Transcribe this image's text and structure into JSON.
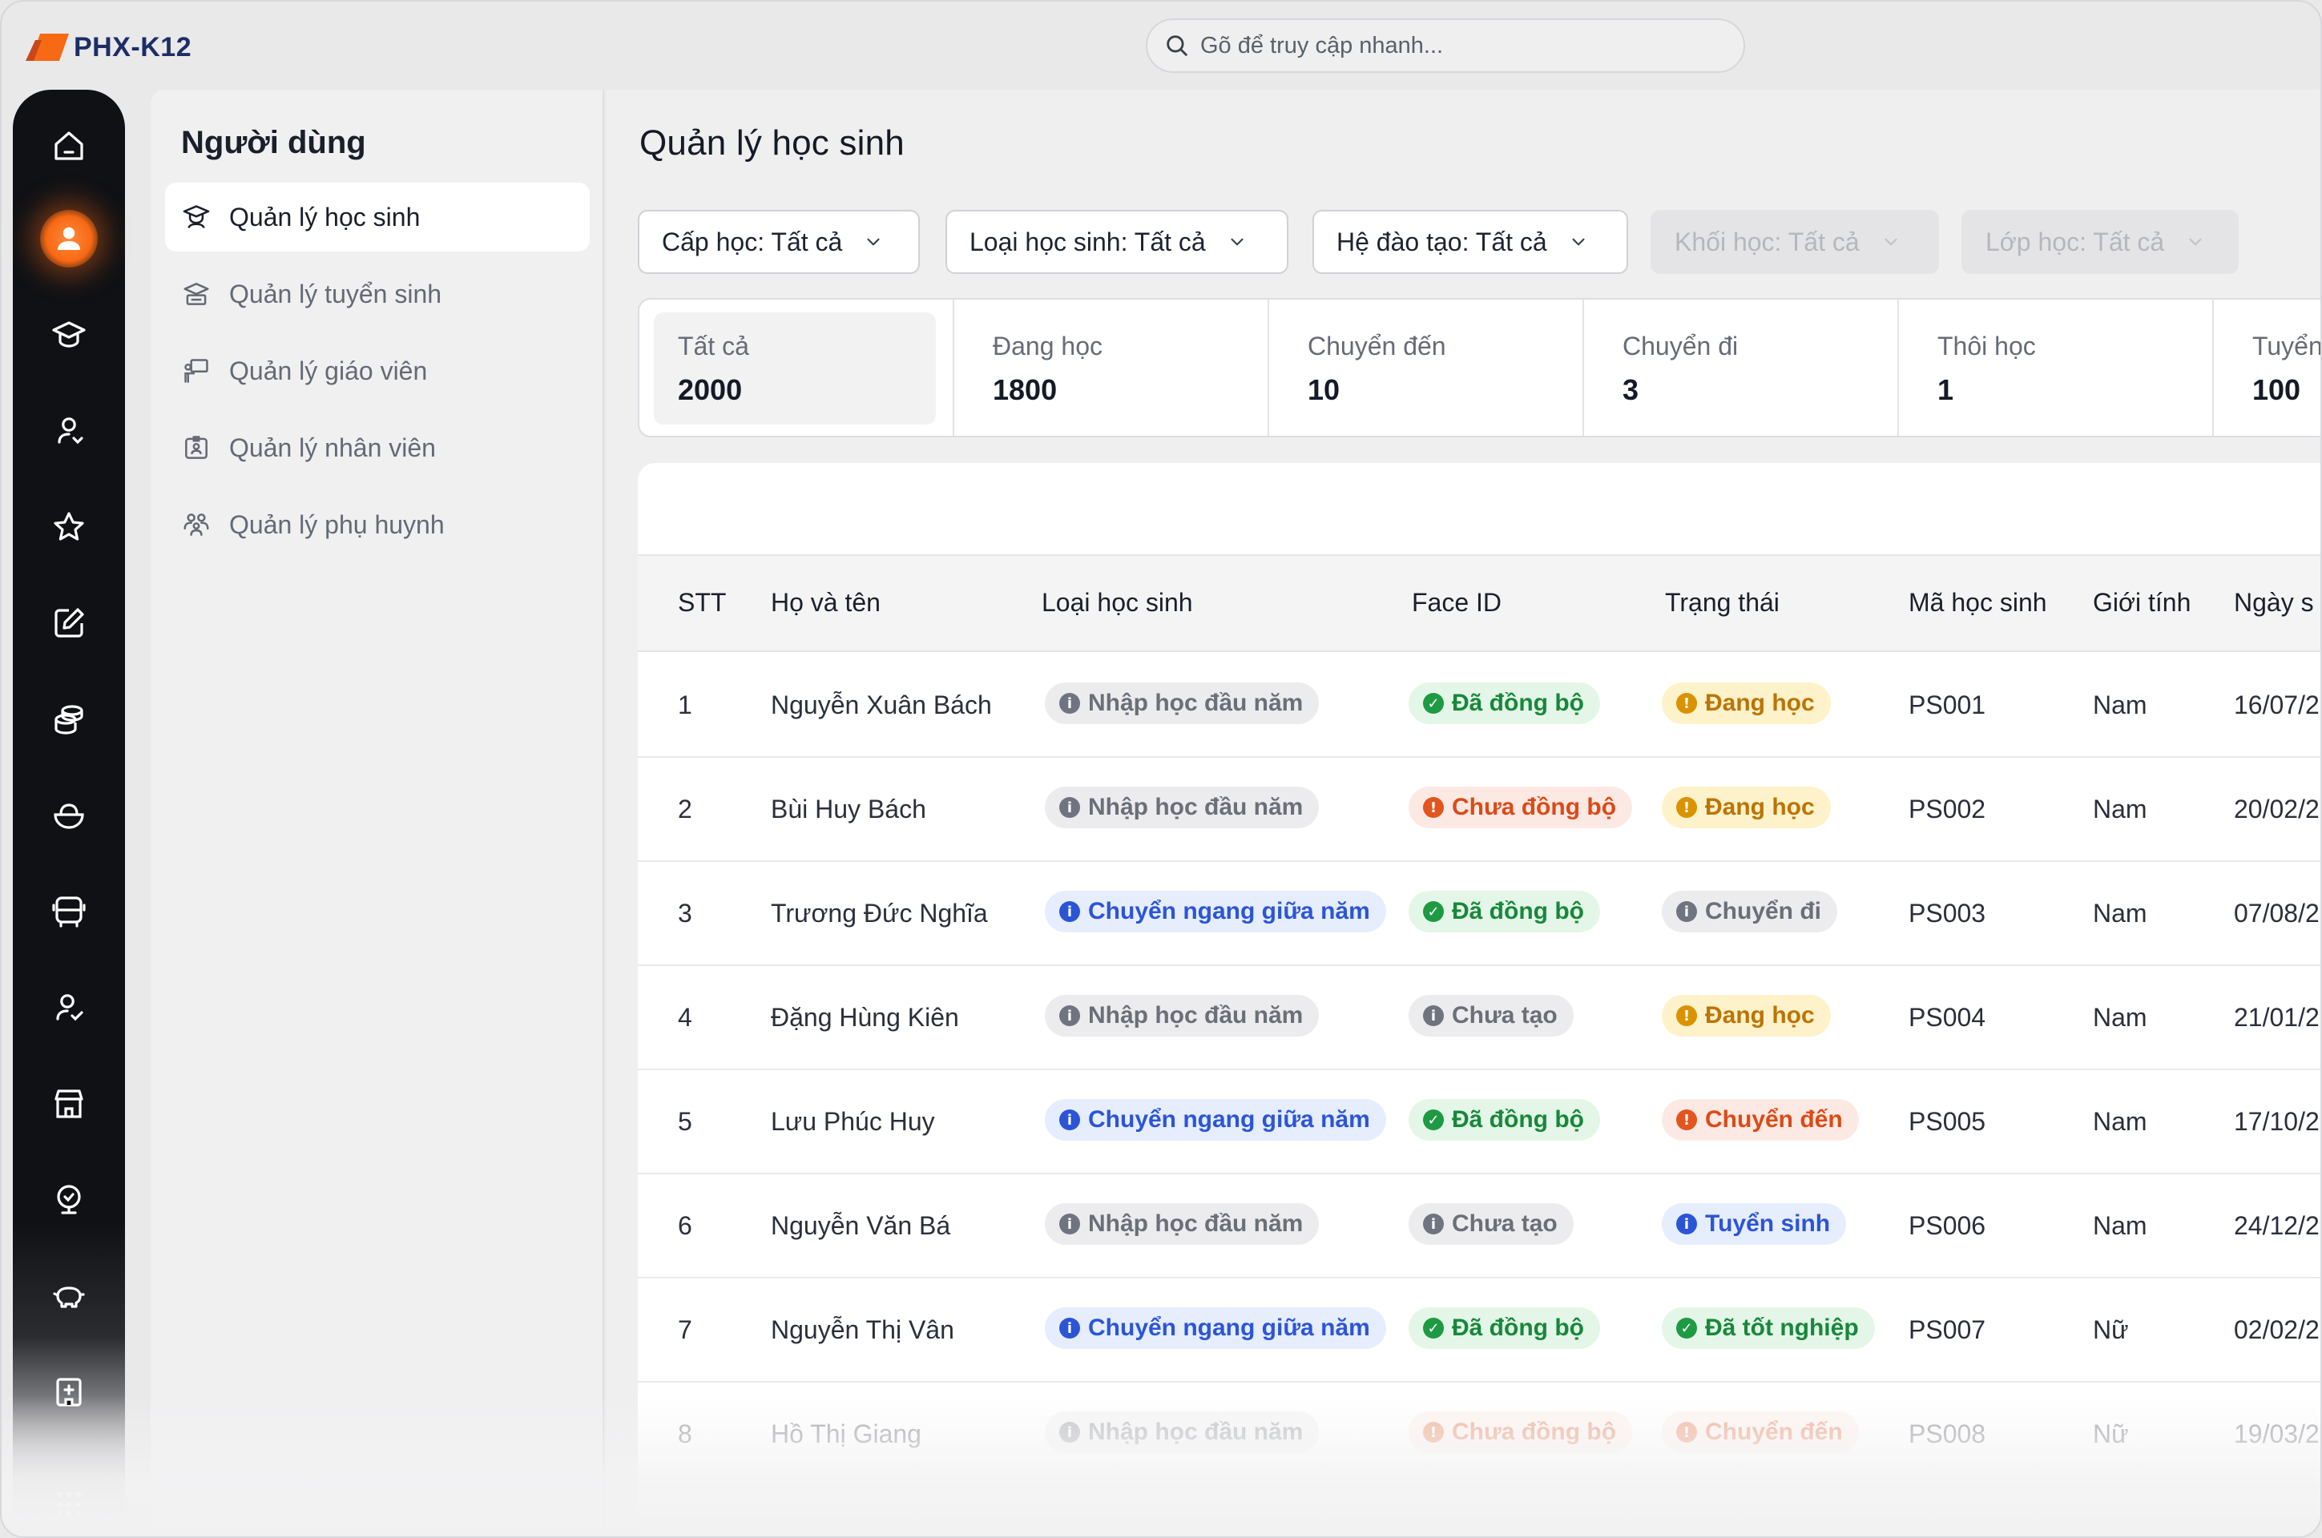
{
  "app": {
    "logo_text": "PHX-K12"
  },
  "search": {
    "placeholder": "Gõ để truy cập nhanh..."
  },
  "rail": {
    "icons": [
      "home-icon",
      "user-icon",
      "graduation-cap-icon",
      "user-sync-icon",
      "star-icon",
      "edit-icon",
      "coins-icon",
      "food-bowl-icon",
      "bus-icon",
      "user-check-icon",
      "store-icon",
      "presentation-icon",
      "piggy-bank-icon",
      "building-icon",
      "apps-grid-icon"
    ],
    "active_index": 1
  },
  "subnav": {
    "title": "Người dùng",
    "items": [
      {
        "label": "Quản lý học sinh",
        "icon": "student-icon",
        "active": true
      },
      {
        "label": "Quản lý tuyển sinh",
        "icon": "admission-icon",
        "active": false
      },
      {
        "label": "Quản lý giáo viên",
        "icon": "teacher-icon",
        "active": false
      },
      {
        "label": "Quản lý nhân viên",
        "icon": "staff-badge-icon",
        "active": false
      },
      {
        "label": "Quản lý phụ huynh",
        "icon": "parents-icon",
        "active": false
      }
    ]
  },
  "page": {
    "title": "Quản lý học sinh"
  },
  "filters": [
    {
      "label": "Cấp học: Tất cả",
      "enabled": true
    },
    {
      "label": "Loại học sinh: Tất cả",
      "enabled": true
    },
    {
      "label": "Hệ đào tạo: Tất cả",
      "enabled": true
    },
    {
      "label": "Khối học: Tất cả",
      "enabled": false
    },
    {
      "label": "Lớp học: Tất cả",
      "enabled": false
    }
  ],
  "stats": [
    {
      "label": "Tất cả",
      "value": "2000",
      "active": true
    },
    {
      "label": "Đang học",
      "value": "1800"
    },
    {
      "label": "Chuyển đến",
      "value": "10"
    },
    {
      "label": "Chuyển đi",
      "value": "3"
    },
    {
      "label": "Thôi học",
      "value": "1"
    },
    {
      "label": "Tuyển",
      "value": "100"
    }
  ],
  "table": {
    "columns": [
      "STT",
      "Họ và tên",
      "Loại học sinh",
      "Face ID",
      "Trạng thái",
      "Mã học sinh",
      "Giới tính",
      "Ngày s"
    ],
    "rows": [
      {
        "stt": "1",
        "name": "Nguyễn Xuân Bách",
        "type": "Nhập học đầu năm",
        "type_color": "gray",
        "face": "Đã đồng bộ",
        "face_color": "green",
        "status": "Đang học",
        "status_color": "yellow",
        "code": "PS001",
        "gender": "Nam",
        "dob": "16/07/2"
      },
      {
        "stt": "2",
        "name": "Bùi Huy Bách",
        "type": "Nhập học đầu năm",
        "type_color": "gray",
        "face": "Chưa đồng bộ",
        "face_color": "red",
        "status": "Đang học",
        "status_color": "yellow",
        "code": "PS002",
        "gender": "Nam",
        "dob": "20/02/2"
      },
      {
        "stt": "3",
        "name": "Trương Đức Nghĩa",
        "type": "Chuyển ngang giữa năm",
        "type_color": "blue",
        "face": "Đã đồng bộ",
        "face_color": "green",
        "status": "Chuyển đi",
        "status_color": "gray",
        "code": "PS003",
        "gender": "Nam",
        "dob": "07/08/2"
      },
      {
        "stt": "4",
        "name": "Đặng Hùng Kiên",
        "type": "Nhập học đầu năm",
        "type_color": "gray",
        "face": "Chưa tạo",
        "face_color": "gray",
        "status": "Đang học",
        "status_color": "yellow",
        "code": "PS004",
        "gender": "Nam",
        "dob": "21/01/2"
      },
      {
        "stt": "5",
        "name": "Lưu Phúc Huy",
        "type": "Chuyển ngang giữa năm",
        "type_color": "blue",
        "face": "Đã đồng bộ",
        "face_color": "green",
        "status": "Chuyển đến",
        "status_color": "red",
        "code": "PS005",
        "gender": "Nam",
        "dob": "17/10/2"
      },
      {
        "stt": "6",
        "name": "Nguyễn Văn Bá",
        "type": "Nhập học đầu năm",
        "type_color": "gray",
        "face": "Chưa tạo",
        "face_color": "gray",
        "status": "Tuyển sinh",
        "status_color": "blue",
        "code": "PS006",
        "gender": "Nam",
        "dob": "24/12/2"
      },
      {
        "stt": "7",
        "name": "Nguyễn Thị Vân",
        "type": "Chuyển ngang giữa năm",
        "type_color": "blue",
        "face": "Đã đồng bộ",
        "face_color": "green",
        "status": "Đã tốt nghiệp",
        "status_color": "green",
        "code": "PS007",
        "gender": "Nữ",
        "dob": "02/02/2"
      },
      {
        "stt": "8",
        "name": "Hồ Thị Giang",
        "type": "Nhập học đầu năm",
        "type_color": "gray",
        "face": "Chưa đồng bộ",
        "face_color": "red",
        "status": "Chuyển đến",
        "status_color": "red",
        "code": "PS008",
        "gender": "Nữ",
        "dob": "19/03/2"
      }
    ]
  },
  "colors": {
    "brand_orange": "#f86914",
    "brand_navy": "#1c2e66",
    "rail_bg": "#0f1115",
    "badge_green": "#1e9a43",
    "badge_red": "#e2551f",
    "badge_yellow": "#d99300",
    "badge_blue": "#2c55d6",
    "badge_gray": "#6f7480"
  }
}
